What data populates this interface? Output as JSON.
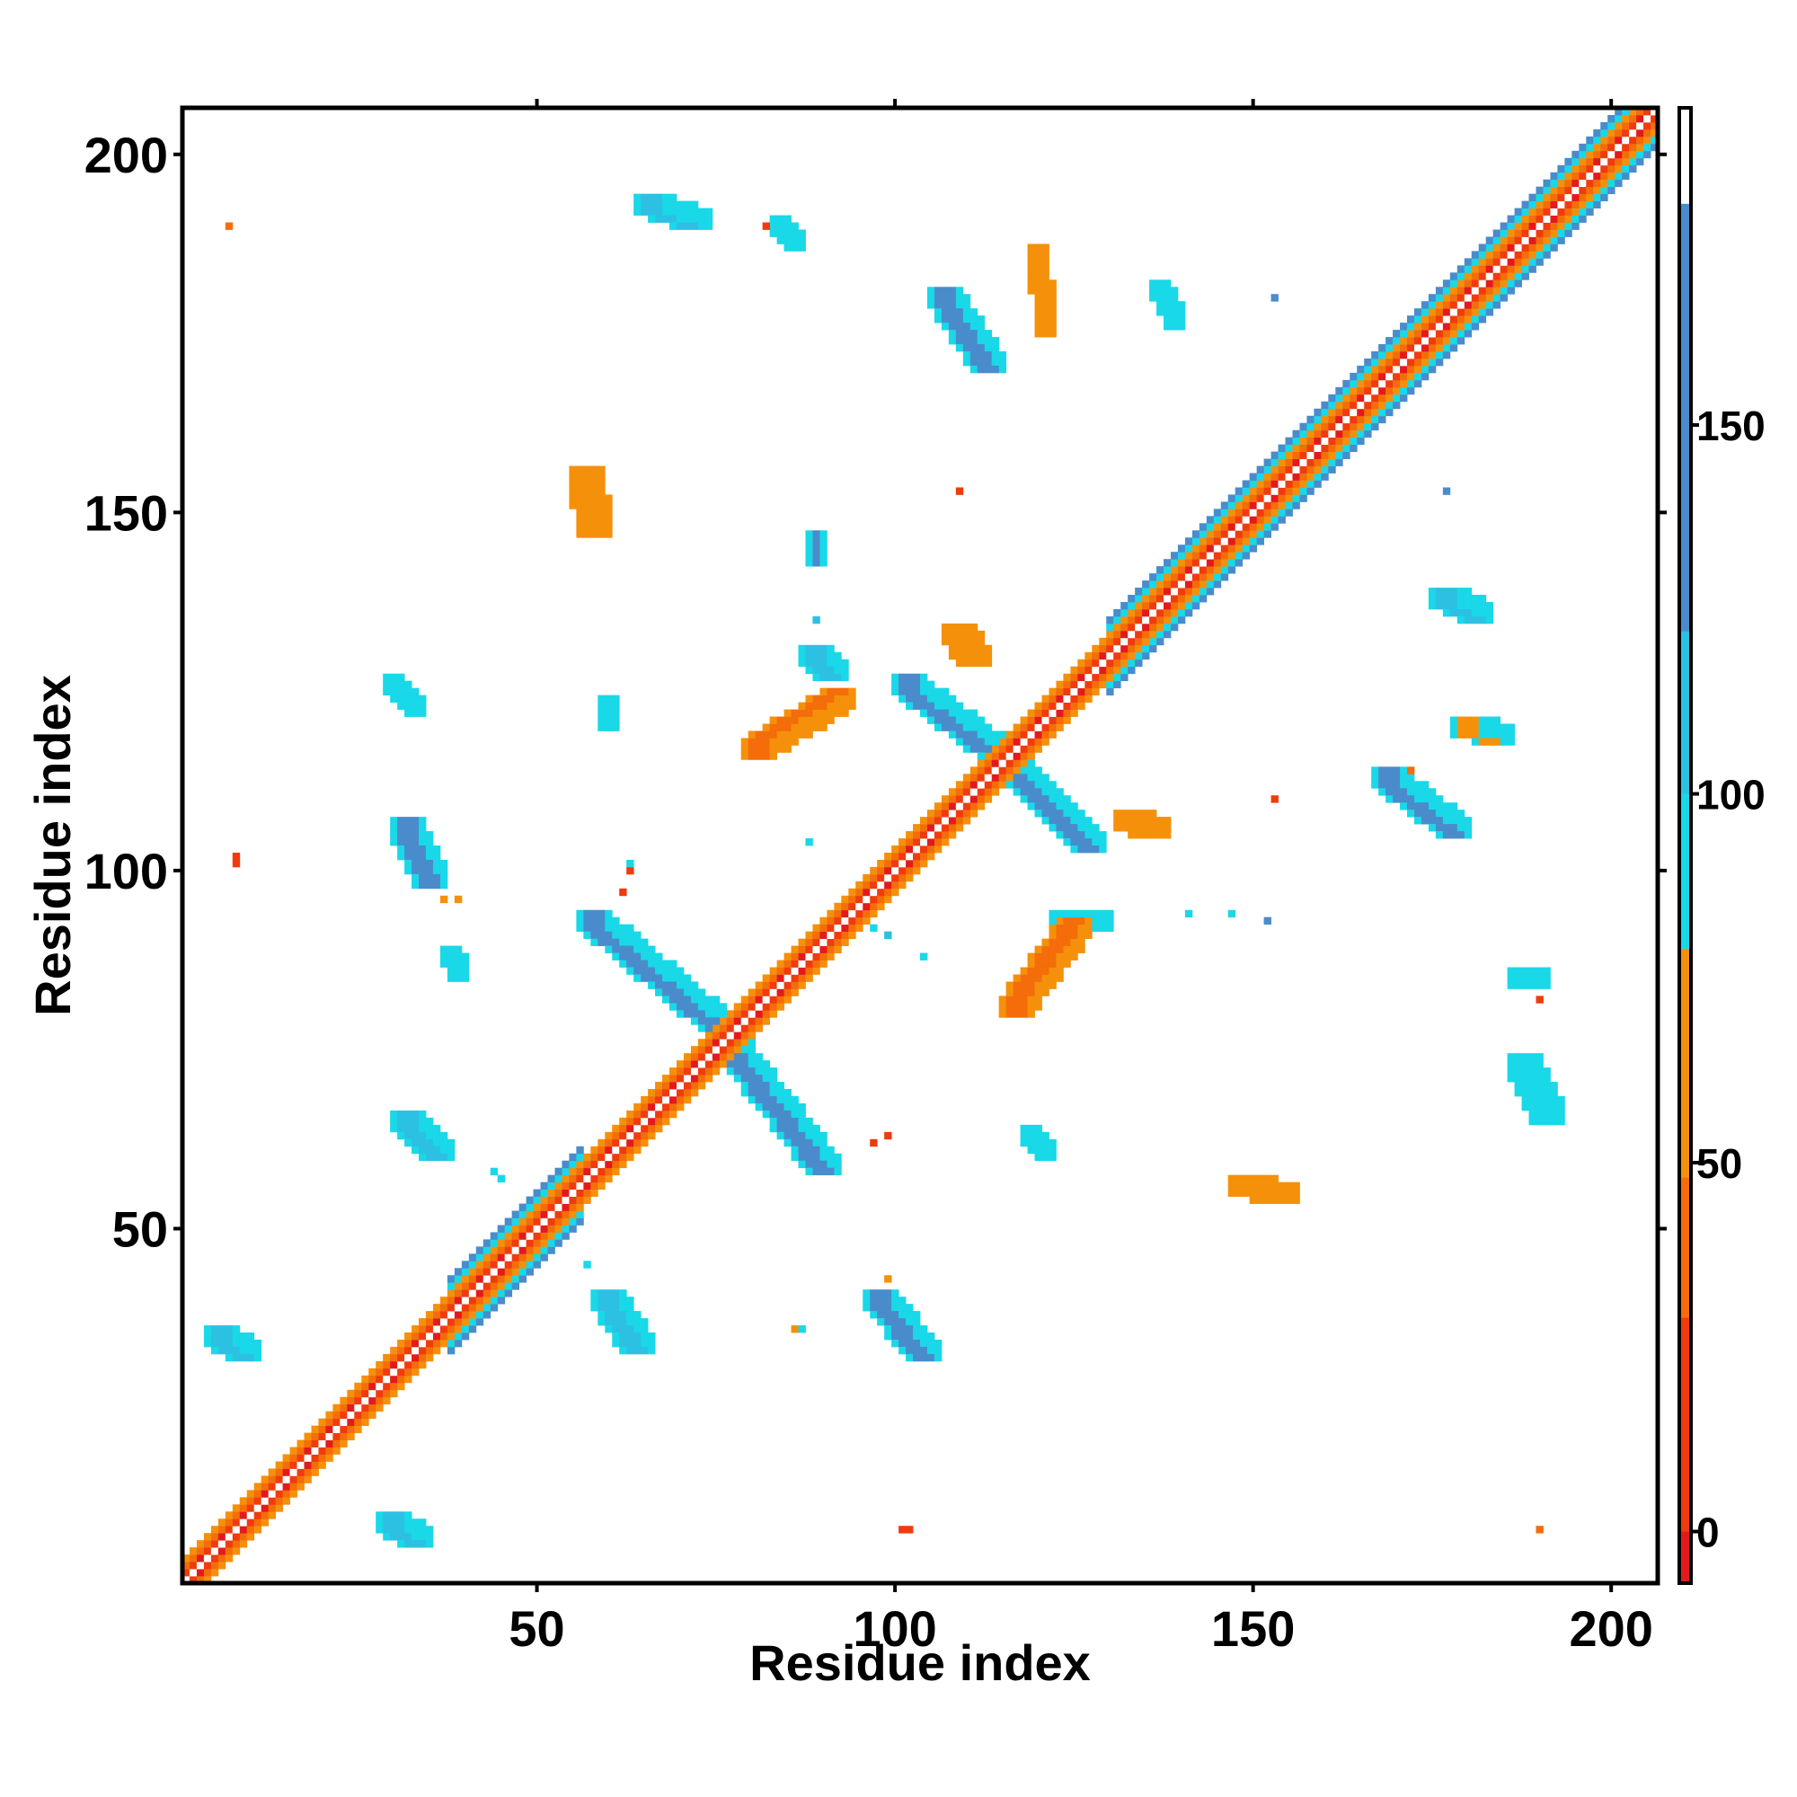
{
  "chart_data": {
    "type": "heatmap",
    "title": "",
    "xlabel": "Residue index",
    "ylabel": "Residue index",
    "xlim": [
      1,
      206
    ],
    "ylim": [
      1,
      206
    ],
    "x_ticks": [
      "50",
      "100",
      "150",
      "200"
    ],
    "y_ticks": [
      "50",
      "100",
      "150",
      "200"
    ],
    "x_tick_values": [
      50,
      100,
      150,
      200
    ],
    "y_tick_values": [
      50,
      100,
      150,
      200
    ],
    "colorbar": {
      "range": [
        -7,
        193
      ],
      "ticks": [
        "0",
        "50",
        "100",
        "150"
      ],
      "tick_values": [
        0,
        50,
        100,
        150
      ],
      "bins": [
        {
          "from": -7,
          "to": 0,
          "color": "#e31a1c"
        },
        {
          "from": 0,
          "to": 29,
          "color": "#f03b0e"
        },
        {
          "from": 29,
          "to": 48,
          "color": "#f46d0a"
        },
        {
          "from": 48,
          "to": 79,
          "color": "#f5900b"
        },
        {
          "from": 79,
          "to": 100,
          "color": "#19d8e8"
        },
        {
          "from": 100,
          "to": 122,
          "color": "#2cc1e3"
        },
        {
          "from": 122,
          "to": 180,
          "color": "#4a8ccb"
        },
        {
          "from": 180,
          "to": 193,
          "color": "#ffffff"
        }
      ]
    },
    "diagonal_band": {
      "from": 1,
      "to": 206
    },
    "blocks": [
      {
        "x": [
          32,
          35
        ],
        "y": [
          106,
          99
        ],
        "w": 2,
        "v": 130
      },
      {
        "x": [
          58,
          76
        ],
        "y": [
          93,
          78
        ],
        "w": 2,
        "v": 130
      },
      {
        "x": [
          76,
          90
        ],
        "y": [
          77,
          59
        ],
        "w": 2,
        "v": 130
      },
      {
        "x": [
          102,
          115
        ],
        "y": [
          126,
          116
        ],
        "w": 2,
        "v": 130
      },
      {
        "x": [
          116,
          127
        ],
        "y": [
          115,
          104
        ],
        "w": 2,
        "v": 130
      },
      {
        "x": [
          98,
          104
        ],
        "y": [
          40,
          33
        ],
        "w": 2,
        "v": 130
      },
      {
        "x": [
          60,
          64
        ],
        "y": [
          40,
          34
        ],
        "w": 2,
        "v": 120
      },
      {
        "x": [
          32,
          36
        ],
        "y": [
          65,
          61
        ],
        "w": 2,
        "v": 120
      },
      {
        "x": [
          107,
          113
        ],
        "y": [
          180,
          171
        ],
        "w": 2,
        "v": 130
      },
      {
        "x": [
          169,
          178
        ],
        "y": [
          113,
          106
        ],
        "w": 2,
        "v": 130
      },
      {
        "x": [
          6,
          9
        ],
        "y": [
          35,
          33
        ],
        "w": 2,
        "v": 110
      },
      {
        "x": [
          30,
          33
        ],
        "y": [
          9,
          7
        ],
        "w": 2,
        "v": 110
      },
      {
        "x": [
          81,
          92
        ],
        "y": [
          117,
          124
        ],
        "w": 2,
        "v": 30
      },
      {
        "x": [
          117,
          125
        ],
        "y": [
          81,
          92
        ],
        "w": 2,
        "v": 30
      },
      {
        "x": [
          30,
          33
        ],
        "y": [
          126,
          123
        ],
        "w": 1,
        "v": 90
      },
      {
        "x": [
          124,
          128
        ],
        "y": [
          93,
          93
        ],
        "w": 2,
        "v": 95
      },
      {
        "x": [
          119,
          121
        ],
        "y": [
          63,
          61
        ],
        "w": 1,
        "v": 90
      },
      {
        "x": [
          66,
          72
        ],
        "y": [
          193,
          191
        ],
        "w": 2,
        "v": 100
      },
      {
        "x": [
          177,
          181
        ],
        "y": [
          138,
          136
        ],
        "w": 2,
        "v": 100
      },
      {
        "x": [
          188,
          191
        ],
        "y": [
          73,
          66
        ],
        "w": 2,
        "v": 90
      },
      {
        "x": [
          137,
          139
        ],
        "y": [
          181,
          177
        ],
        "w": 1,
        "v": 90
      },
      {
        "x": [
          109,
          111
        ],
        "y": [
          133,
          130
        ],
        "w": 2,
        "v": 50
      },
      {
        "x": [
          89,
          91
        ],
        "y": [
          130,
          128
        ],
        "w": 2,
        "v": 110
      },
      {
        "x": [
          89,
          89
        ],
        "y": [
          146,
          144
        ],
        "w": 1,
        "v": 140
      },
      {
        "x": [
          57,
          58
        ],
        "y": [
          155,
          148
        ],
        "w": 2,
        "v": 55
      },
      {
        "x": [
          120,
          121
        ],
        "y": [
          186,
          176
        ],
        "w": 1,
        "v": 55
      },
      {
        "x": [
          149,
          154
        ],
        "y": [
          56,
          55
        ],
        "w": 2,
        "v": 55
      },
      {
        "x": [
          133,
          136
        ],
        "y": [
          107,
          106
        ],
        "w": 2,
        "v": 50
      },
      {
        "x": [
          180,
          184
        ],
        "y": [
          120,
          119
        ],
        "w": 2,
        "v": 60
      },
      {
        "x": [
          38,
          39
        ],
        "y": [
          88,
          86
        ],
        "w": 1,
        "v": 90
      },
      {
        "x": [
          60,
          60
        ],
        "y": [
          123,
          121
        ],
        "w": 1,
        "v": 95
      },
      {
        "x": [
          84,
          86
        ],
        "y": [
          190,
          188
        ],
        "w": 1,
        "v": 90
      },
      {
        "x": [
          187,
          190
        ],
        "y": [
          85,
          85
        ],
        "w": 1,
        "v": 95
      }
    ],
    "points": [
      {
        "x": 7,
        "y": 190,
        "v": 40
      },
      {
        "x": 8,
        "y": 102,
        "v": 5
      },
      {
        "x": 8,
        "y": 101,
        "v": 5
      },
      {
        "x": 82,
        "y": 190,
        "v": 5
      },
      {
        "x": 109,
        "y": 153,
        "v": 5
      },
      {
        "x": 102,
        "y": 8,
        "v": 5
      },
      {
        "x": 101,
        "y": 8,
        "v": 5
      },
      {
        "x": 153,
        "y": 110,
        "v": 5
      },
      {
        "x": 190,
        "y": 8,
        "v": 45
      },
      {
        "x": 190,
        "y": 82,
        "v": 5
      },
      {
        "x": 63,
        "y": 100,
        "v": 5
      },
      {
        "x": 62,
        "y": 97,
        "v": 5
      },
      {
        "x": 99,
        "y": 63,
        "v": 5
      },
      {
        "x": 97,
        "y": 62,
        "v": 5
      },
      {
        "x": 153,
        "y": 180,
        "v": 130
      },
      {
        "x": 177,
        "y": 153,
        "v": 130
      },
      {
        "x": 45,
        "y": 57,
        "v": 90
      },
      {
        "x": 57,
        "y": 45,
        "v": 90
      },
      {
        "x": 44,
        "y": 58,
        "v": 90
      },
      {
        "x": 89,
        "y": 135,
        "v": 100
      },
      {
        "x": 88,
        "y": 104,
        "v": 95
      },
      {
        "x": 104,
        "y": 88,
        "v": 95
      },
      {
        "x": 114,
        "y": 172,
        "v": 45
      },
      {
        "x": 172,
        "y": 114,
        "v": 45
      },
      {
        "x": 141,
        "y": 94,
        "v": 95
      },
      {
        "x": 147,
        "y": 94,
        "v": 95
      },
      {
        "x": 152,
        "y": 93,
        "v": 140
      },
      {
        "x": 100,
        "y": 36,
        "v": 55
      },
      {
        "x": 99,
        "y": 43,
        "v": 60
      },
      {
        "x": 86,
        "y": 36,
        "v": 60
      },
      {
        "x": 87,
        "y": 36,
        "v": 95
      },
      {
        "x": 63,
        "y": 101,
        "v": 95
      },
      {
        "x": 37,
        "y": 96,
        "v": 55
      },
      {
        "x": 39,
        "y": 96,
        "v": 55
      },
      {
        "x": 97,
        "y": 92,
        "v": 95
      },
      {
        "x": 99,
        "y": 91,
        "v": 100
      }
    ]
  }
}
